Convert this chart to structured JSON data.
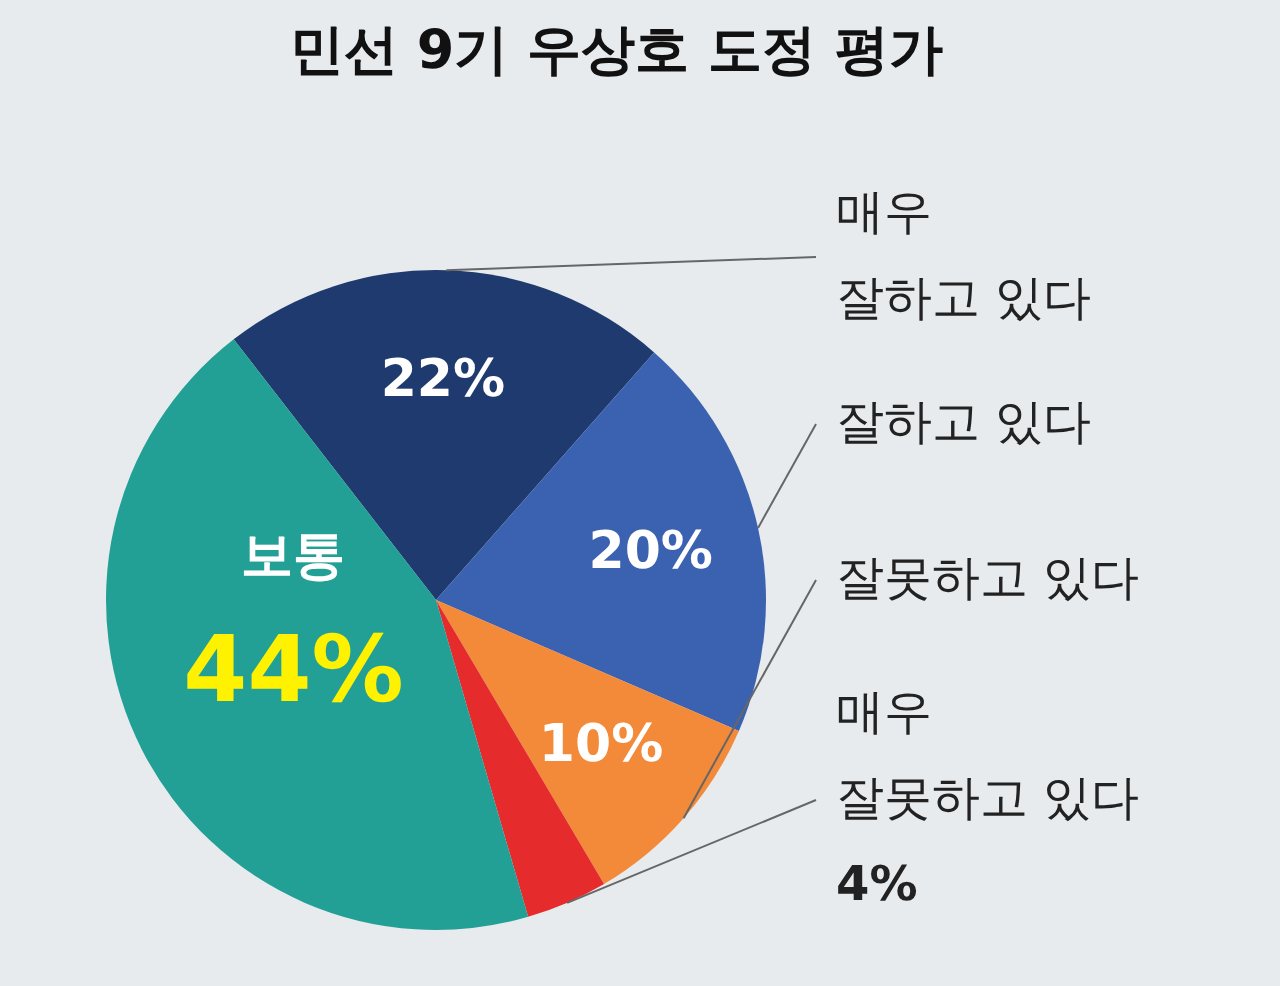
{
  "chart_data": {
    "type": "pie",
    "title": "민선 9기 우상호 도정 평가",
    "categories": [
      "매우\n잘하고 있다",
      "잘하고 있다",
      "잘못하고 있다",
      "매우\n잘못하고 있다",
      "보통"
    ],
    "values": [
      22,
      20,
      10,
      4,
      44
    ],
    "colors": [
      "#1f3a6e",
      "#3a62b0",
      "#f28a3a",
      "#e52b2b",
      "#22a096"
    ],
    "value_labels": [
      "22%",
      "20%",
      "10%",
      "4%",
      "44%"
    ],
    "legend": false
  }
}
